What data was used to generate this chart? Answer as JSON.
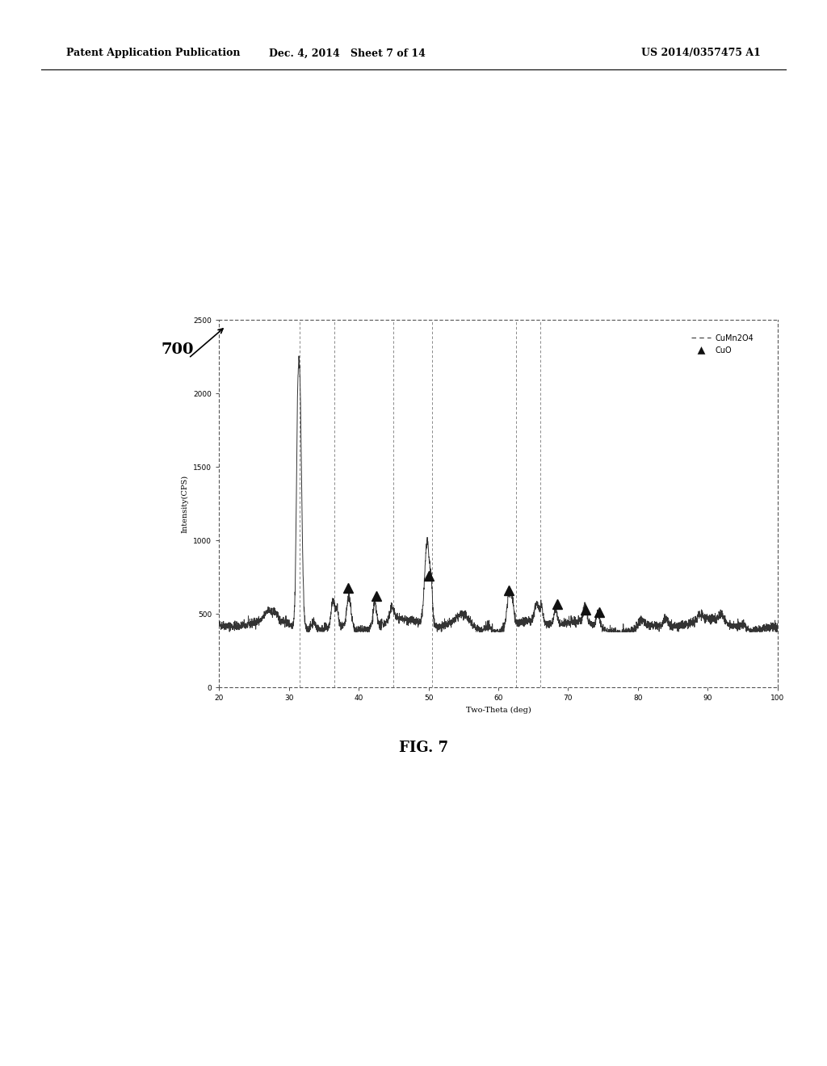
{
  "header_left": "Patent Application Publication",
  "header_center": "Dec. 4, 2014   Sheet 7 of 14",
  "header_right": "US 2014/0357475 A1",
  "fig_label": "700",
  "fig_caption": "FIG. 7",
  "xlabel": "Two-Theta (deg)",
  "ylabel": "Intensity(CPS)",
  "xlim": [
    20,
    100
  ],
  "ylim": [
    0,
    2500
  ],
  "yticks": [
    0,
    500,
    1000,
    1500,
    2000,
    2500
  ],
  "xticks": [
    20,
    30,
    40,
    50,
    60,
    70,
    80,
    90,
    100
  ],
  "legend_entries": [
    "CuMn2O4",
    "CuO"
  ],
  "background_color": "#ffffff",
  "plot_bg": "#ffffff",
  "line_color": "#333333",
  "dashed_line_color": "#555555",
  "triangle_color": "#111111",
  "dashed_vlines": [
    31.5,
    36.5,
    45.0,
    50.5,
    62.5,
    66.0
  ],
  "cuo_triangle_positions": [
    38.5,
    42.5,
    50.0,
    61.5,
    68.5,
    72.5,
    74.5
  ],
  "cuo_triangle_y": [
    680,
    620,
    760,
    660,
    570,
    530,
    510
  ],
  "main_peak_x": 31.5,
  "main_peak_y": 2170
}
